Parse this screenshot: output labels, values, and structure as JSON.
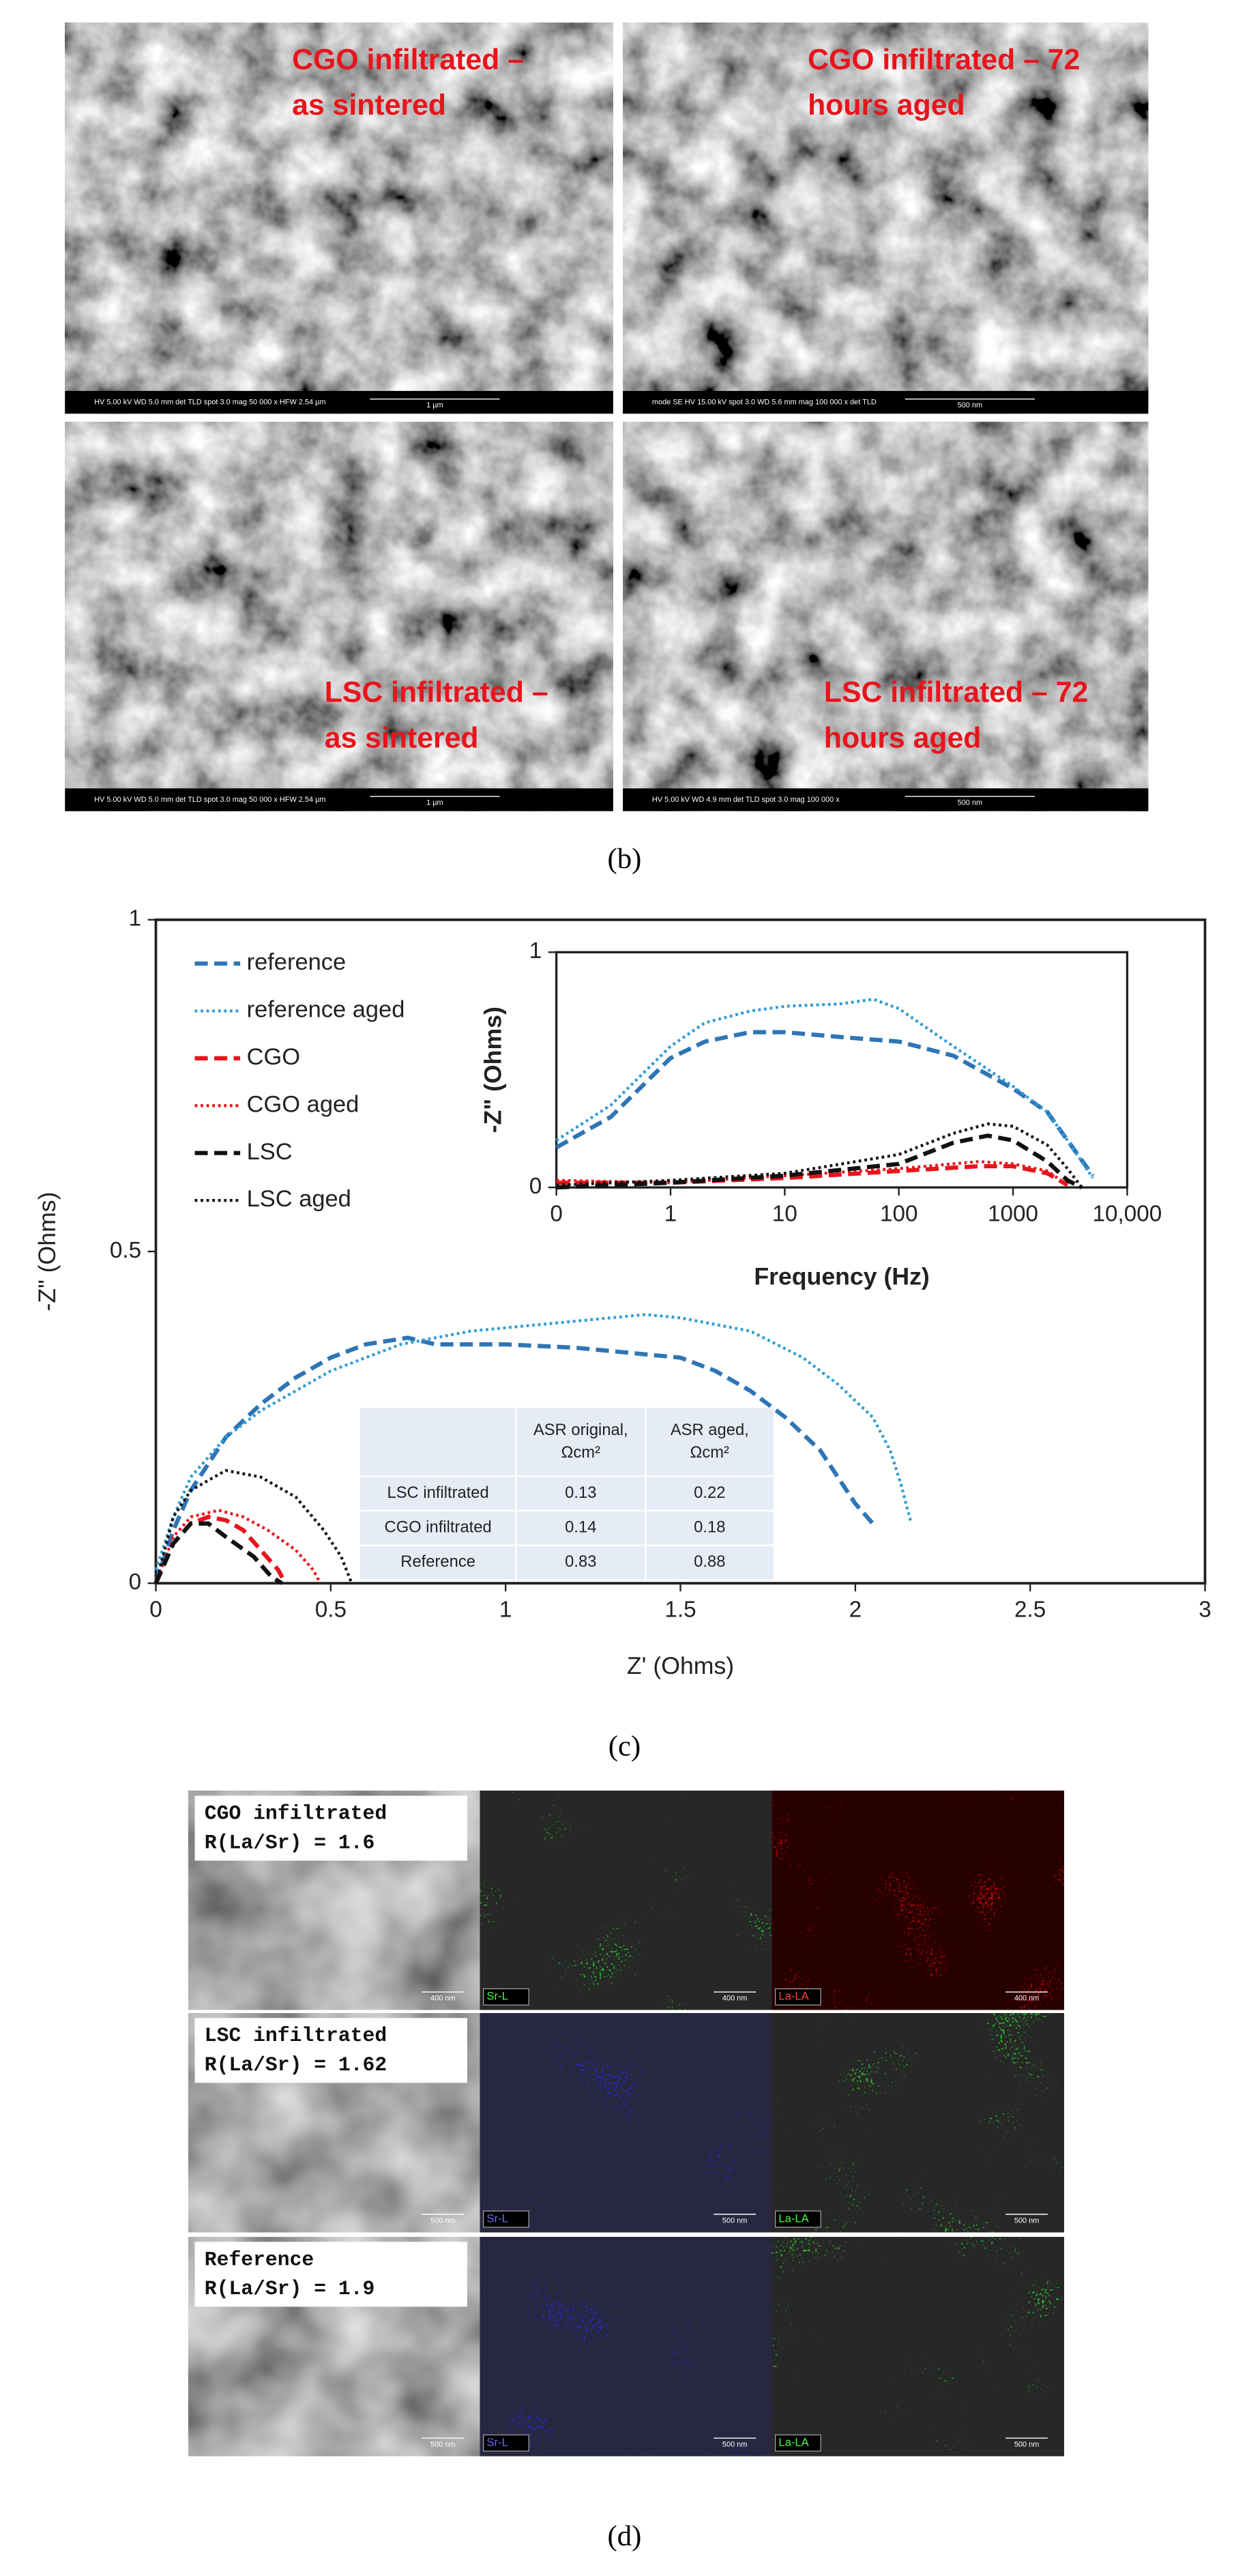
{
  "panel_b": {
    "images": [
      {
        "label": [
          "CGO infiltrated –",
          "as sintered"
        ],
        "info": "HV 5.00 kV   WD 5.0 mm   det TLD   spot 3.0   mag 50 000 x   HFW 2.54 µm",
        "scale": "1 µm"
      },
      {
        "label": [
          "CGO infiltrated – 72",
          "hours aged"
        ],
        "info": "mode SE   HV 15.00 kV   spot 3.0   WD 5.6 mm   mag 100 000 x   det TLD",
        "scale": "500 nm"
      },
      {
        "label": [
          "LSC infiltrated –",
          "as sintered"
        ],
        "info": "HV 5.00 kV   WD 5.0 mm   det TLD   spot 3.0   mag 50 000 x   HFW 2.54 µm",
        "scale": "1 µm"
      },
      {
        "label": [
          "LSC infiltrated – 72",
          "hours aged"
        ],
        "info": "HV 5.00 kV   WD 4.9 mm   det TLD   spot 3.0   mag 100 000 x",
        "scale": "500 nm"
      }
    ],
    "caption": "(b)"
  },
  "chart_data": [
    {
      "type": "line",
      "xlabel": "Z' (Ohms)",
      "ylabel": "-Z\" (Ohms)",
      "xlim": [
        0,
        3
      ],
      "ylim": [
        0,
        1
      ],
      "xticks": [
        0,
        0.5,
        1,
        1.5,
        2,
        2.5,
        3
      ],
      "yticks": [
        0,
        0.5,
        1
      ],
      "legend": "upper left",
      "series": [
        {
          "name": "reference",
          "color": "#2e75b6",
          "dash": "dashed",
          "x": [
            0,
            0.05,
            0.1,
            0.2,
            0.3,
            0.4,
            0.5,
            0.6,
            0.72,
            0.8,
            1.0,
            1.2,
            1.4,
            1.5,
            1.6,
            1.7,
            1.8,
            1.9,
            1.95,
            2.0,
            2.05
          ],
          "values": [
            0,
            0.08,
            0.14,
            0.22,
            0.27,
            0.31,
            0.34,
            0.36,
            0.37,
            0.36,
            0.36,
            0.355,
            0.345,
            0.34,
            0.32,
            0.29,
            0.25,
            0.2,
            0.16,
            0.12,
            0.09
          ]
        },
        {
          "name": "reference aged",
          "color": "#2e9bd6",
          "dash": "dotted",
          "x": [
            0,
            0.05,
            0.1,
            0.2,
            0.3,
            0.5,
            0.7,
            0.9,
            1.1,
            1.3,
            1.4,
            1.5,
            1.7,
            1.85,
            1.95,
            2.05,
            2.1,
            2.13,
            2.16
          ],
          "values": [
            0.02,
            0.1,
            0.16,
            0.22,
            0.26,
            0.32,
            0.36,
            0.38,
            0.39,
            0.4,
            0.405,
            0.4,
            0.38,
            0.34,
            0.3,
            0.25,
            0.2,
            0.15,
            0.09
          ]
        },
        {
          "name": "CGO",
          "color": "#e8141c",
          "dash": "dashed",
          "x": [
            0,
            0.05,
            0.1,
            0.15,
            0.2,
            0.25,
            0.3,
            0.35,
            0.37
          ],
          "values": [
            0,
            0.06,
            0.09,
            0.1,
            0.095,
            0.08,
            0.05,
            0.02,
            0
          ]
        },
        {
          "name": "CGO aged",
          "color": "#e8141c",
          "dash": "dotted",
          "x": [
            0,
            0.05,
            0.1,
            0.18,
            0.25,
            0.32,
            0.4,
            0.45,
            0.47
          ],
          "values": [
            0,
            0.07,
            0.1,
            0.11,
            0.1,
            0.08,
            0.05,
            0.02,
            0
          ]
        },
        {
          "name": "LSC",
          "color": "#111111",
          "dash": "dashed",
          "x": [
            0,
            0.05,
            0.1,
            0.15,
            0.2,
            0.28,
            0.33,
            0.36
          ],
          "values": [
            0,
            0.06,
            0.09,
            0.09,
            0.07,
            0.04,
            0.01,
            0
          ]
        },
        {
          "name": "LSC aged",
          "color": "#111111",
          "dash": "dotted",
          "x": [
            0,
            0.05,
            0.1,
            0.2,
            0.3,
            0.4,
            0.48,
            0.53,
            0.56
          ],
          "values": [
            0,
            0.1,
            0.14,
            0.17,
            0.16,
            0.13,
            0.08,
            0.04,
            0
          ]
        }
      ]
    },
    {
      "type": "line",
      "log_x": true,
      "xlabel": "Frequency (Hz)",
      "ylabel": "-Z\" (Ohms)",
      "xlim": [
        0.1,
        10000
      ],
      "ylim": [
        0,
        1
      ],
      "xticks": [
        {
          "value": 0.1,
          "label": "0"
        },
        1,
        10,
        100,
        1000,
        {
          "value": 10000,
          "label": "10,000"
        }
      ],
      "yticks": [
        0,
        1
      ],
      "series": [
        {
          "color": "#2e75b6",
          "dash": "dashed",
          "x": [
            0.1,
            0.3,
            1,
            2,
            5,
            10,
            30,
            100,
            300,
            1000,
            2000,
            3000,
            5000
          ],
          "values": [
            0.17,
            0.3,
            0.55,
            0.62,
            0.66,
            0.66,
            0.64,
            0.62,
            0.56,
            0.42,
            0.32,
            0.2,
            0.05
          ]
        },
        {
          "color": "#2e9bd6",
          "dash": "dotted",
          "x": [
            0.1,
            0.3,
            1,
            2,
            5,
            10,
            30,
            60,
            100,
            300,
            1000,
            2000,
            3000,
            5000
          ],
          "values": [
            0.2,
            0.35,
            0.6,
            0.7,
            0.75,
            0.77,
            0.78,
            0.8,
            0.76,
            0.6,
            0.43,
            0.32,
            0.2,
            0.04
          ]
        },
        {
          "color": "#e8141c",
          "dash": "dashed",
          "x": [
            0.1,
            1,
            10,
            100,
            500,
            1000,
            2000,
            3000
          ],
          "values": [
            0.02,
            0.02,
            0.04,
            0.07,
            0.09,
            0.09,
            0.06,
            0.01
          ]
        },
        {
          "color": "#e8141c",
          "dash": "dotted",
          "x": [
            0.1,
            1,
            10,
            100,
            500,
            1000,
            2000,
            3000
          ],
          "values": [
            0.03,
            0.02,
            0.05,
            0.08,
            0.11,
            0.1,
            0.07,
            0.01
          ]
        },
        {
          "color": "#111111",
          "dash": "dashed",
          "x": [
            0.1,
            1,
            10,
            100,
            300,
            600,
            1000,
            2000,
            3000,
            4000
          ],
          "values": [
            0,
            0.02,
            0.05,
            0.1,
            0.19,
            0.22,
            0.2,
            0.11,
            0.03,
            0
          ]
        },
        {
          "color": "#111111",
          "dash": "dotted",
          "x": [
            0.1,
            1,
            10,
            100,
            300,
            600,
            1000,
            2000,
            3000,
            4000
          ],
          "values": [
            0.01,
            0.03,
            0.06,
            0.14,
            0.23,
            0.27,
            0.26,
            0.18,
            0.08,
            0
          ]
        }
      ]
    }
  ],
  "table": {
    "header": [
      [
        "ASR original,",
        "Ωcm²"
      ],
      [
        "ASR aged,",
        "Ωcm²"
      ]
    ],
    "rows": [
      [
        "LSC infiltrated",
        "0.13",
        "0.22"
      ],
      [
        "CGO infiltrated",
        "0.14",
        "0.18"
      ],
      [
        "Reference",
        "0.83",
        "0.88"
      ]
    ]
  },
  "caption_c": "(c)",
  "panel_d": {
    "rows": [
      {
        "label": [
          "CGO infiltrated",
          "R(La/Sr) = 1.6"
        ],
        "maps": [
          "Sr-L",
          "La-LA"
        ],
        "map_colors": [
          "green",
          "red"
        ],
        "scale": [
          "400 nm",
          "400 nm",
          "400 nm"
        ]
      },
      {
        "label": [
          "LSC infiltrated",
          "R(La/Sr) = 1.62"
        ],
        "maps": [
          "Sr-L",
          "La-LA"
        ],
        "map_colors": [
          "blue",
          "green"
        ],
        "scale": [
          "500 nm",
          "500 nm",
          "500 nm"
        ]
      },
      {
        "label": [
          "Reference",
          "R(La/Sr) = 1.9"
        ],
        "maps": [
          "Sr-L",
          "La-LA"
        ],
        "map_colors": [
          "blue",
          "green"
        ],
        "scale": [
          "500 nm",
          "500 nm",
          "500 nm"
        ]
      }
    ],
    "caption": "(d)"
  }
}
